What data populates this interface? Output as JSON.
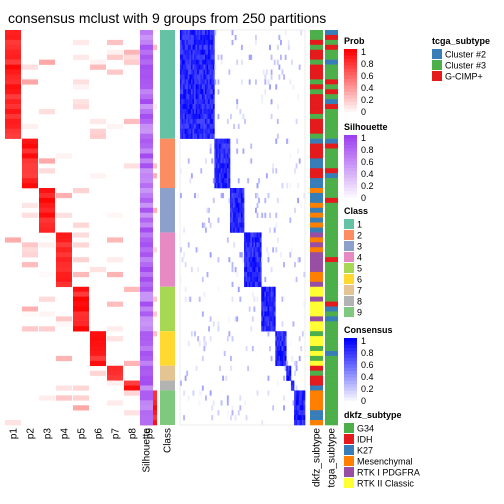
{
  "chart_data": {
    "type": "heatmap",
    "title": "consensus mclust with 9 groups from 250 partitions",
    "columns": [
      "p1",
      "p2",
      "p3",
      "p4",
      "p5",
      "p6",
      "p7",
      "p8",
      "p9",
      "Silhouette",
      "Class",
      "dkfz_subtype",
      "tcga_subtype"
    ],
    "class_groups": [
      {
        "class": 1,
        "color": "#66C2A5",
        "n": 22
      },
      {
        "class": 2,
        "color": "#FC8D62",
        "n": 10
      },
      {
        "class": 3,
        "color": "#8DA0CB",
        "n": 9
      },
      {
        "class": 4,
        "color": "#E78AC3",
        "n": 11
      },
      {
        "class": 5,
        "color": "#A6D854",
        "n": 9
      },
      {
        "class": 6,
        "color": "#FFD92F",
        "n": 7
      },
      {
        "class": 7,
        "color": "#E5C494",
        "n": 3
      },
      {
        "class": 8,
        "color": "#B3B3B3",
        "n": 2
      },
      {
        "class": 9,
        "color": "#7FC97F",
        "n": 7
      }
    ],
    "legends": {
      "prob": {
        "title": "Prob",
        "ticks": [
          "1",
          "0.8",
          "0.6",
          "0.4",
          "0.2",
          "0"
        ],
        "low": "#FFFFFF",
        "high": "#FF0000"
      },
      "silhouette": {
        "title": "Silhouette",
        "ticks": [
          "1",
          "0.8",
          "0.6",
          "0.4",
          "0.2",
          "0"
        ],
        "low": "#FFFFFF",
        "high": "#9E40F0"
      },
      "class": {
        "title": "Class",
        "items": [
          {
            "label": "1",
            "color": "#66C2A5"
          },
          {
            "label": "2",
            "color": "#FC8D62"
          },
          {
            "label": "3",
            "color": "#8DA0CB"
          },
          {
            "label": "4",
            "color": "#E78AC3"
          },
          {
            "label": "5",
            "color": "#A6D854"
          },
          {
            "label": "6",
            "color": "#FFD92F"
          },
          {
            "label": "7",
            "color": "#E5C494"
          },
          {
            "label": "8",
            "color": "#B3B3B3"
          },
          {
            "label": "9",
            "color": "#7FC97F"
          }
        ]
      },
      "consensus": {
        "title": "Consensus",
        "ticks": [
          "1",
          "0.8",
          "0.6",
          "0.4",
          "0.2",
          "0"
        ],
        "low": "#FFFFFF",
        "high": "#0000FF"
      },
      "dkfz_subtype": {
        "title": "dkfz_subtype",
        "items": [
          {
            "label": "G34",
            "color": "#4DAF4A"
          },
          {
            "label": "IDH",
            "color": "#E41A1C"
          },
          {
            "label": "K27",
            "color": "#377EB8"
          },
          {
            "label": "Mesenchymal",
            "color": "#FF7F00"
          },
          {
            "label": "RTK I PDGFRA",
            "color": "#984EA3"
          },
          {
            "label": "RTK II Classic",
            "color": "#FFFF33"
          }
        ]
      },
      "tcga_subtype": {
        "title": "tcga_subtype",
        "items": [
          {
            "label": "Cluster #2",
            "color": "#377EB8"
          },
          {
            "label": "Cluster #3",
            "color": "#4DAF4A"
          },
          {
            "label": "G-CIMP+",
            "color": "#E41A1C"
          }
        ]
      }
    }
  }
}
